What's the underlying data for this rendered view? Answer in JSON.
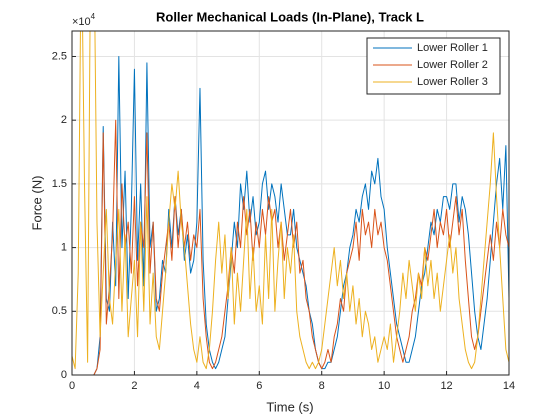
{
  "chart_data": {
    "type": "line",
    "title": "Roller Mechanical Loads (In-Plane), Track L",
    "xlabel": "Time (s)",
    "ylabel": "Force (N)",
    "y_multiplier": {
      "base": "×10",
      "exponent": "4"
    },
    "xlim": [
      0,
      14
    ],
    "xticks": [
      0,
      2,
      4,
      6,
      8,
      10,
      12,
      14
    ],
    "ylim": [
      0,
      2.7
    ],
    "yticks": [
      0,
      0.5,
      1,
      1.5,
      2,
      2.5
    ],
    "grid": true,
    "legend": "top-right",
    "x": [
      0,
      0.1,
      0.2,
      0.3,
      0.4,
      0.5,
      0.6,
      0.7,
      0.8,
      0.9,
      1,
      1.1,
      1.2,
      1.3,
      1.4,
      1.5,
      1.6,
      1.7,
      1.8,
      1.9,
      2,
      2.1,
      2.2,
      2.3,
      2.4,
      2.5,
      2.6,
      2.7,
      2.8,
      2.9,
      3,
      3.1,
      3.2,
      3.3,
      3.4,
      3.5,
      3.6,
      3.7,
      3.8,
      3.9,
      4,
      4.1,
      4.2,
      4.3,
      4.4,
      4.5,
      4.6,
      4.7,
      4.8,
      4.9,
      5,
      5.1,
      5.2,
      5.3,
      5.4,
      5.5,
      5.6,
      5.7,
      5.8,
      5.9,
      6,
      6.1,
      6.2,
      6.3,
      6.4,
      6.5,
      6.6,
      6.7,
      6.8,
      6.9,
      7,
      7.1,
      7.2,
      7.3,
      7.4,
      7.5,
      7.6,
      7.7,
      7.8,
      7.9,
      8,
      8.1,
      8.2,
      8.3,
      8.4,
      8.5,
      8.6,
      8.7,
      8.8,
      8.9,
      9,
      9.1,
      9.2,
      9.3,
      9.4,
      9.5,
      9.6,
      9.7,
      9.8,
      9.9,
      10,
      10.1,
      10.2,
      10.3,
      10.4,
      10.5,
      10.6,
      10.7,
      10.8,
      10.9,
      11,
      11.1,
      11.2,
      11.3,
      11.4,
      11.5,
      11.6,
      11.7,
      11.8,
      11.9,
      12,
      12.1,
      12.2,
      12.3,
      12.4,
      12.5,
      12.6,
      12.7,
      12.8,
      12.9,
      13,
      13.1,
      13.2,
      13.3,
      13.4,
      13.5,
      13.6,
      13.7,
      13.8,
      13.9,
      14
    ],
    "series": [
      {
        "name": "Lower Roller 1",
        "color": "#0072BD",
        "values": [
          0,
          0,
          0,
          0,
          0,
          0,
          0,
          0,
          0.05,
          0.3,
          1.95,
          0.6,
          0.5,
          1.2,
          0.7,
          2.5,
          1.0,
          1.6,
          0.6,
          1.3,
          2.4,
          0.9,
          1.5,
          0.7,
          2.45,
          1.0,
          1.2,
          0.5,
          0.6,
          0.9,
          0.8,
          1.3,
          1.0,
          1.4,
          1.1,
          1.3,
          0.9,
          1.1,
          0.8,
          0.9,
          1.2,
          2.25,
          0.9,
          0.4,
          0.2,
          0.1,
          0.05,
          0.1,
          0.2,
          0.3,
          0.6,
          0.9,
          1.2,
          1.0,
          1.5,
          1.3,
          1.6,
          1.2,
          1.4,
          1.1,
          1.2,
          1.5,
          1.6,
          1.3,
          1.5,
          1.4,
          1.2,
          1.5,
          1.3,
          1.1,
          1.1,
          1.3,
          1.0,
          0.9,
          0.8,
          0.7,
          0.5,
          0.4,
          0.2,
          0.1,
          0.05,
          0.05,
          0.1,
          0.1,
          0.2,
          0.3,
          0.5,
          0.7,
          0.8,
          1.0,
          1.1,
          1.3,
          1.2,
          1.4,
          1.5,
          1.3,
          1.6,
          1.5,
          1.7,
          1.4,
          1.3,
          1.0,
          0.8,
          0.6,
          0.4,
          0.3,
          0.2,
          0.1,
          0.1,
          0.2,
          0.3,
          0.5,
          0.7,
          0.8,
          1.0,
          1.2,
          1.1,
          1.3,
          1.2,
          1.4,
          1.4,
          1.3,
          1.5,
          1.5,
          1.2,
          1.4,
          1.3,
          1.1,
          0.8,
          0.5,
          0.3,
          0.2,
          0.4,
          0.6,
          0.9,
          1.2,
          1.5,
          1.7,
          1.3,
          1.8,
          0.6
        ]
      },
      {
        "name": "Lower Roller 2",
        "color": "#D95319",
        "values": [
          0,
          0,
          0,
          0,
          0,
          0,
          0,
          0,
          0.05,
          0.2,
          1.9,
          0.4,
          0.7,
          1.1,
          2.0,
          0.6,
          1.5,
          1.0,
          1.2,
          0.8,
          1.4,
          0.7,
          1.2,
          1.0,
          1.9,
          0.8,
          1.2,
          0.6,
          0.5,
          0.8,
          1.0,
          1.2,
          0.9,
          1.4,
          1.0,
          1.3,
          1.0,
          1.2,
          0.9,
          1.1,
          1.0,
          1.3,
          0.6,
          0.3,
          0.1,
          0.05,
          0.1,
          0.2,
          0.3,
          0.5,
          0.7,
          1.0,
          0.8,
          1.2,
          1.0,
          1.4,
          1.1,
          1.3,
          0.9,
          1.2,
          1.0,
          1.3,
          1.1,
          1.4,
          1.2,
          1.3,
          1.0,
          1.2,
          0.9,
          1.1,
          1.3,
          1.0,
          1.2,
          0.8,
          0.9,
          0.6,
          0.5,
          0.3,
          0.2,
          0.1,
          0.05,
          0.1,
          0.2,
          0.1,
          0.3,
          0.4,
          0.6,
          0.5,
          0.8,
          0.9,
          1.0,
          1.2,
          0.9,
          1.3,
          1.1,
          1.2,
          1.0,
          1.3,
          1.1,
          1.2,
          1.0,
          0.9,
          0.7,
          0.5,
          0.3,
          0.2,
          0.1,
          0.2,
          0.3,
          0.5,
          0.6,
          0.8,
          0.7,
          1.0,
          0.9,
          1.1,
          1.3,
          1.0,
          1.2,
          1.1,
          1.3,
          1.0,
          1.2,
          1.4,
          1.1,
          1.3,
          0.9,
          0.6,
          0.3,
          0.2,
          0.3,
          0.5,
          0.7,
          0.9,
          1.1,
          0.9,
          1.2,
          1.0,
          1.3,
          1.1,
          1.0
        ]
      },
      {
        "name": "Lower Roller 3",
        "color": "#EDB120",
        "values": [
          0.15,
          0.05,
          0.8,
          3.5,
          1.5,
          0.1,
          3.5,
          3.5,
          1.2,
          0.3,
          0.8,
          1.3,
          0.6,
          0.4,
          0.9,
          1.3,
          0.5,
          1.1,
          0.3,
          0.6,
          0.9,
          0.3,
          1.2,
          0.5,
          1.4,
          0.4,
          0.8,
          0.3,
          0.2,
          0.5,
          0.8,
          1.2,
          1.5,
          1.3,
          1.6,
          1.2,
          1.0,
          0.7,
          0.4,
          0.2,
          0.1,
          0.3,
          0.1,
          0.05,
          0.2,
          0.5,
          0.9,
          1.2,
          0.8,
          1.1,
          0.6,
          1.0,
          0.4,
          0.8,
          0.5,
          0.9,
          1.3,
          0.6,
          1.0,
          0.5,
          0.7,
          0.4,
          1.1,
          0.6,
          1.3,
          0.5,
          0.9,
          1.2,
          0.6,
          1.0,
          0.8,
          1.1,
          0.5,
          0.3,
          0.2,
          0.1,
          0.05,
          0.1,
          0.05,
          0.1,
          0.2,
          0.4,
          0.6,
          0.8,
          1.0,
          0.7,
          0.9,
          0.6,
          0.8,
          0.5,
          0.7,
          0.4,
          0.6,
          0.3,
          0.5,
          0.4,
          0.2,
          0.3,
          0.1,
          0.2,
          0.3,
          0.2,
          0.4,
          0.1,
          0.3,
          0.5,
          0.8,
          0.6,
          0.9,
          0.7,
          0.5,
          0.8,
          0.6,
          1.0,
          0.7,
          0.9,
          0.6,
          0.8,
          0.5,
          0.7,
          0.9,
          1.1,
          0.8,
          1.0,
          0.6,
          0.4,
          0.2,
          0.1,
          0.05,
          0.1,
          0.3,
          0.6,
          0.9,
          1.2,
          1.5,
          1.9,
          1.4,
          1.0,
          0.6,
          0.2,
          0.1
        ]
      }
    ]
  }
}
